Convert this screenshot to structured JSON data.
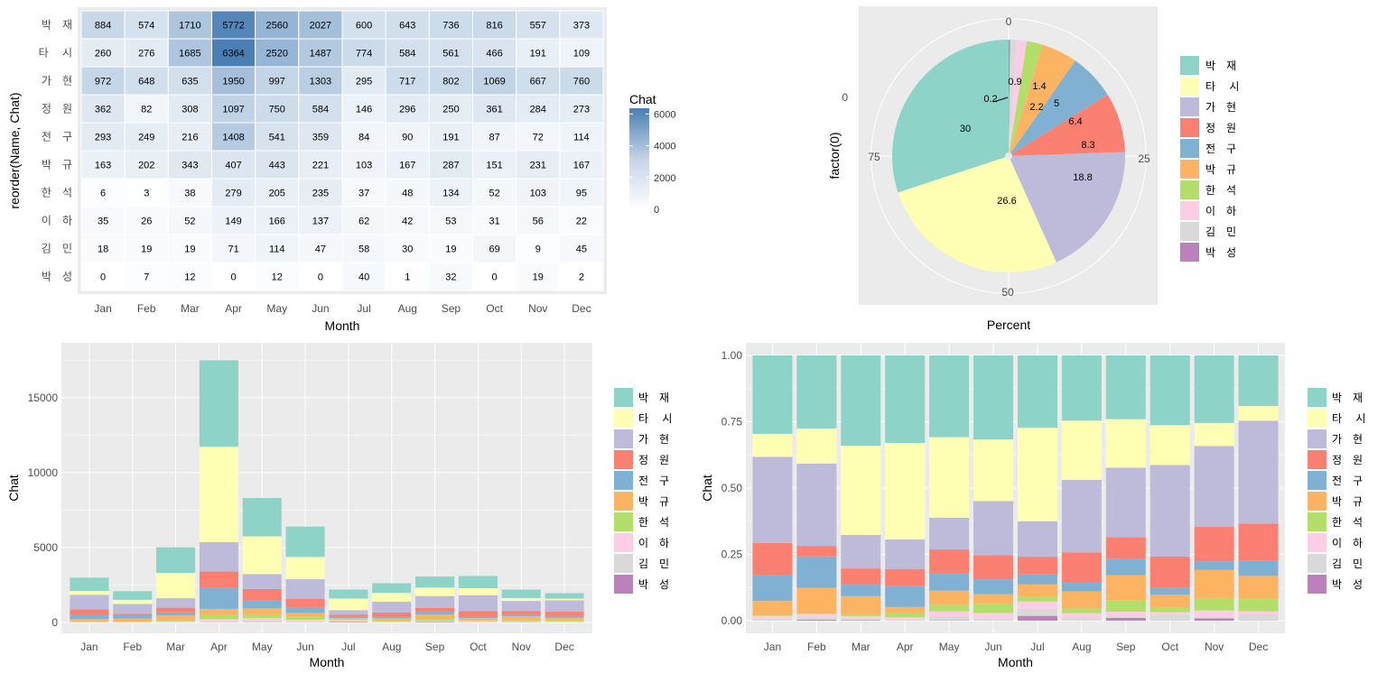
{
  "chart_data": [
    {
      "type": "heatmap",
      "title": "",
      "xlabel": "Month",
      "ylabel": "reorder(Name, Chat)",
      "x": [
        "Jan",
        "Feb",
        "Mar",
        "Apr",
        "May",
        "Jun",
        "Jul",
        "Aug",
        "Sep",
        "Oct",
        "Nov",
        "Dec"
      ],
      "y": [
        "박　재",
        "타　 시",
        "가　현",
        "정　원",
        "전　구",
        "박　규",
        "한　석",
        "이　하",
        "김　민",
        "박　성"
      ],
      "values": [
        [
          884,
          574,
          1710,
          5772,
          2560,
          2027,
          600,
          643,
          736,
          816,
          557,
          373
        ],
        [
          260,
          276,
          1685,
          6364,
          2520,
          1487,
          774,
          584,
          561,
          466,
          191,
          109
        ],
        [
          972,
          648,
          635,
          1950,
          997,
          1303,
          295,
          717,
          802,
          1069,
          667,
          760
        ],
        [
          362,
          82,
          308,
          1097,
          750,
          584,
          146,
          296,
          250,
          361,
          284,
          273
        ],
        [
          293,
          249,
          216,
          1408,
          541,
          359,
          84,
          90,
          191,
          87,
          72,
          114
        ],
        [
          163,
          202,
          343,
          407,
          443,
          221,
          103,
          167,
          287,
          151,
          231,
          167
        ],
        [
          6,
          3,
          38,
          279,
          205,
          235,
          37,
          48,
          134,
          52,
          103,
          95
        ],
        [
          35,
          26,
          52,
          149,
          166,
          137,
          62,
          42,
          53,
          31,
          56,
          22
        ],
        [
          18,
          19,
          19,
          71,
          114,
          47,
          58,
          30,
          19,
          69,
          9,
          45
        ],
        [
          0,
          7,
          12,
          0,
          12,
          0,
          40,
          1,
          32,
          0,
          19,
          2
        ]
      ],
      "legend": {
        "title": "Chat",
        "ticks": [
          "6000",
          "4000",
          "2000",
          "0"
        ],
        "range": [
          0,
          6364
        ]
      },
      "colors": {
        "low": "#ffffff",
        "high": "#4a7fb5"
      },
      "legend_placement": "right"
    },
    {
      "type": "pie",
      "title": "",
      "xlabel": "Percent",
      "ylabel": "factor(0)",
      "categories": [
        "박　재",
        "타　 시",
        "가　현",
        "정　원",
        "전　구",
        "박　규",
        "한　석",
        "이　하",
        "김　민",
        "박　성"
      ],
      "values": [
        30,
        26.6,
        18.8,
        8.3,
        6.4,
        5,
        2.2,
        1.4,
        0.9,
        0.2
      ],
      "slice_labels": [
        "30",
        "26.6",
        "18.8",
        "8.3",
        "6.4",
        "5",
        "2.2",
        "1.4",
        "0.9",
        "0.2"
      ],
      "radial_ticks": [
        "0",
        "25",
        "50",
        "75"
      ],
      "y_tick": "0",
      "legend_placement": "right"
    },
    {
      "type": "bar",
      "stacked": true,
      "title": "",
      "xlabel": "Month",
      "ylabel": "Chat",
      "ylim": [
        0,
        17500
      ],
      "y_ticks": [
        "0",
        "5000",
        "10000",
        "15000"
      ],
      "y_tick_values": [
        0,
        5000,
        10000,
        15000
      ],
      "legend_placement": "right"
    },
    {
      "type": "bar",
      "stacked": true,
      "normalized": true,
      "title": "",
      "xlabel": "Month",
      "ylabel": "Chat",
      "ylim": [
        0,
        1
      ],
      "y_ticks": [
        "0.00",
        "0.25",
        "0.50",
        "0.75",
        "1.00"
      ],
      "y_tick_values": [
        0,
        0.25,
        0.5,
        0.75,
        1.0
      ],
      "legend_placement": "right"
    }
  ],
  "palette": [
    "#8DD3C7",
    "#FFFFB3",
    "#BEBADA",
    "#FB8072",
    "#80B1D3",
    "#FDB462",
    "#B3DE69",
    "#FCCDE5",
    "#D9D9D9",
    "#BC80BD"
  ]
}
